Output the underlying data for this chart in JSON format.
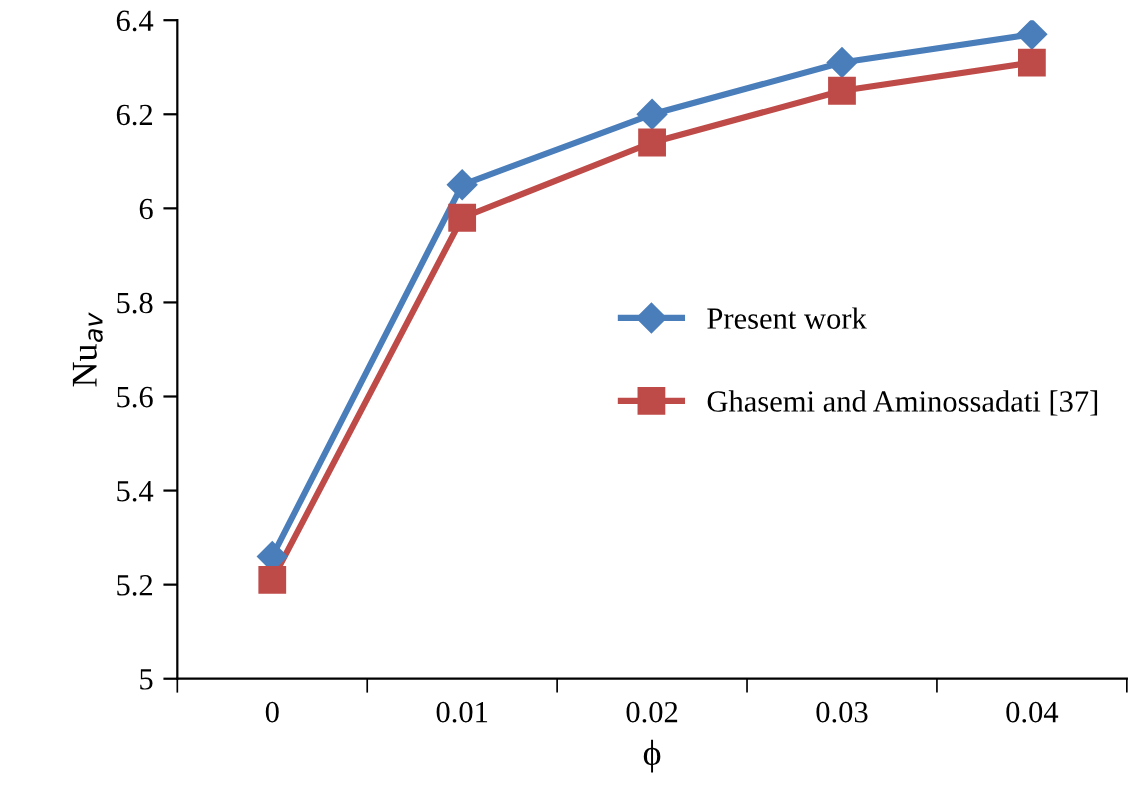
{
  "chart_data": {
    "type": "line",
    "xlabel": "ϕ",
    "ylabel": "Nu$_{av}$",
    "categories": [
      "0",
      "0.01",
      "0.02",
      "0.03",
      "0.04"
    ],
    "series": [
      {
        "name": "Present work",
        "color": "#4a7ebb",
        "values": [
          5.26,
          6.05,
          6.2,
          6.31,
          6.37
        ],
        "marker": "diamond"
      },
      {
        "name": "Ghasemi and Aminossadati [37]",
        "color": "#be4b48",
        "values": [
          5.21,
          5.98,
          6.14,
          6.25,
          6.31
        ],
        "marker": "square"
      }
    ],
    "ylim": [
      5,
      6.4
    ],
    "yticks": [
      5,
      5.2,
      5.4,
      5.6,
      5.8,
      6,
      6.2,
      6.4
    ],
    "grid": false,
    "legend": "right",
    "line_style": "solid"
  }
}
